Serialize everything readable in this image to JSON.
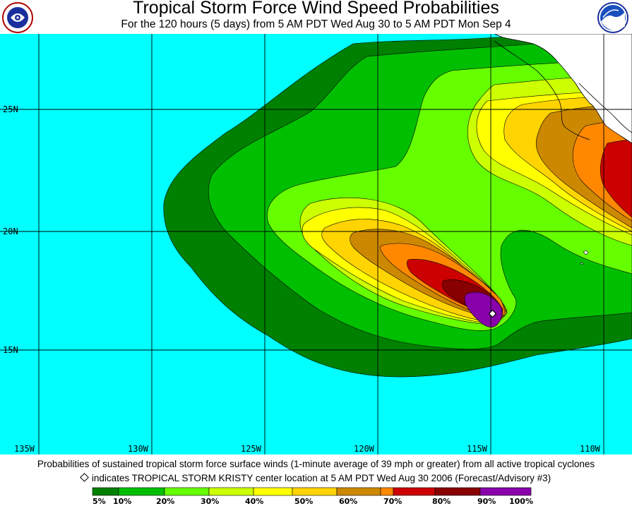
{
  "header": {
    "title": "Tropical Storm Force Wind Speed Probabilities",
    "subtitle": "For the 120 hours (5 days) from 5 AM PDT Wed Aug 30 to 5 AM PDT Mon Sep 4",
    "left_logo_text": "NATIONAL WEATHER SERVICE",
    "right_logo_text": "NOAA"
  },
  "map": {
    "ocean_color": "#00ffff",
    "land_color": "#ffffff",
    "latitude_labels": [
      "25N",
      "20N",
      "15N"
    ],
    "longitude_labels": [
      "135W",
      "130W",
      "125W",
      "120W",
      "115W",
      "110W"
    ],
    "storm_marker_icon": "diamond-icon"
  },
  "footer": {
    "line1": "Probabilities of sustained tropical storm force surface winds (1-minute average of 39 mph or greater) from all active tropical cyclones",
    "line2": "indicates TROPICAL STORM KRISTY center location at 5 AM PDT Wed Aug 30 2006 (Forecast/Advisory #3)"
  },
  "legend": {
    "labels": [
      "5%",
      "10%",
      "20%",
      "30%",
      "40%",
      "50%",
      "60%",
      "70%",
      "80%",
      "90%",
      "100%"
    ],
    "colors": [
      "#008000",
      "#00bf00",
      "#66ff00",
      "#ccff00",
      "#ffff00",
      "#ffd400",
      "#cc8800",
      "#ff8800",
      "#cc0000",
      "#880000",
      "#8800aa"
    ]
  }
}
